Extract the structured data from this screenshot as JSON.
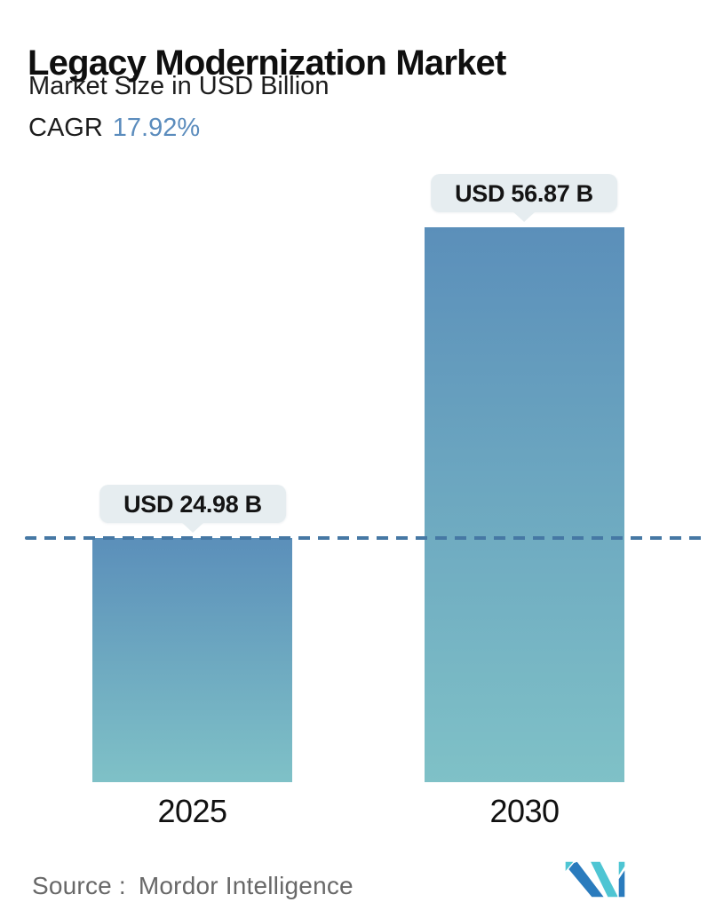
{
  "header": {
    "title": "Legacy Modernization Market",
    "subtitle": "Market Size in USD Billion",
    "cagr_label": "CAGR",
    "cagr_value": "17.92%"
  },
  "chart_data": {
    "type": "bar",
    "title": "Legacy Modernization Market",
    "subtitle": "Market Size in USD Billion",
    "unit": "USD Billion",
    "cagr_percent": 17.92,
    "categories": [
      "2025",
      "2030"
    ],
    "values": [
      24.98,
      56.87
    ],
    "value_labels": [
      "USD 24.98 B",
      "USD 56.87 B"
    ],
    "series": [
      {
        "name": "Market Size",
        "values": [
          24.98,
          56.87
        ]
      }
    ],
    "ylim": [
      0,
      56.87
    ],
    "grid": false,
    "legend": false,
    "reference_line": {
      "style": "dashed",
      "at_value": 24.98
    }
  },
  "footer": {
    "source_label": "Source :",
    "source_name": "Mordor Intelligence"
  },
  "colors": {
    "bar_gradient_top": "#5b8fba",
    "bar_gradient_bottom": "#7fc1c7",
    "bubble_background": "#e6edf0",
    "dashed_line": "#4678a4",
    "cagr_value_text": "#5b8cbd",
    "title_text": "#0f0f0f",
    "source_text": "#686868",
    "logo_teal": "#4ec5d3",
    "logo_blue": "#2a7bbd"
  }
}
